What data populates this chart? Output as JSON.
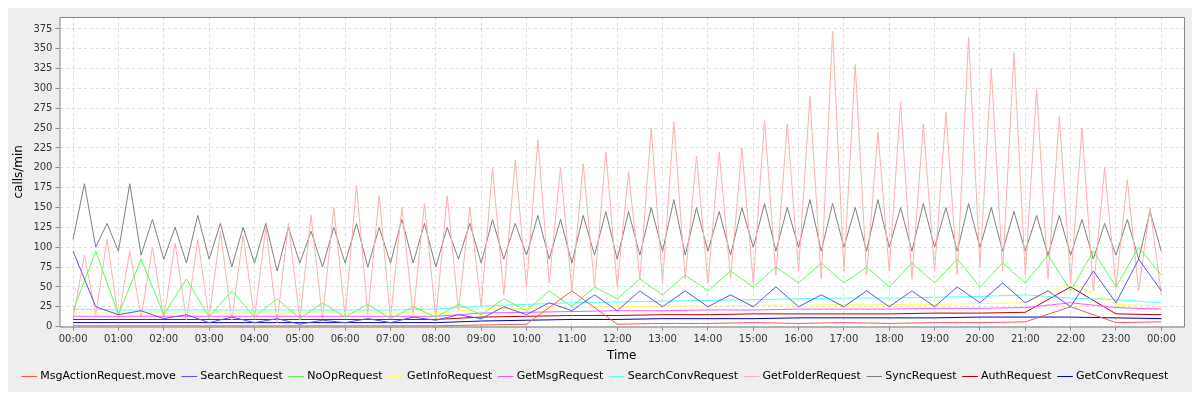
{
  "chart_data": {
    "type": "line",
    "xlabel": "Time",
    "ylabel": "calls/min",
    "xlim": [
      -0.3,
      24.5
    ],
    "ylim": [
      0,
      390
    ],
    "xticks": [
      {
        "value": 0,
        "label": "00:00"
      },
      {
        "value": 1,
        "label": "01:00"
      },
      {
        "value": 2,
        "label": "02:00"
      },
      {
        "value": 3,
        "label": "03:00"
      },
      {
        "value": 4,
        "label": "04:00"
      },
      {
        "value": 5,
        "label": "05:00"
      },
      {
        "value": 6,
        "label": "06:00"
      },
      {
        "value": 7,
        "label": "07:00"
      },
      {
        "value": 8,
        "label": "08:00"
      },
      {
        "value": 9,
        "label": "09:00"
      },
      {
        "value": 10,
        "label": "10:00"
      },
      {
        "value": 11,
        "label": "11:00"
      },
      {
        "value": 12,
        "label": "12:00"
      },
      {
        "value": 13,
        "label": "13:00"
      },
      {
        "value": 14,
        "label": "14:00"
      },
      {
        "value": 15,
        "label": "15:00"
      },
      {
        "value": 16,
        "label": "16:00"
      },
      {
        "value": 17,
        "label": "17:00"
      },
      {
        "value": 18,
        "label": "18:00"
      },
      {
        "value": 19,
        "label": "19:00"
      },
      {
        "value": 20,
        "label": "20:00"
      },
      {
        "value": 21,
        "label": "21:00"
      },
      {
        "value": 22,
        "label": "22:00"
      },
      {
        "value": 23,
        "label": "23:00"
      },
      {
        "value": 24,
        "label": "00:00"
      }
    ],
    "yticks": [
      0,
      25,
      50,
      75,
      100,
      125,
      150,
      175,
      200,
      225,
      250,
      275,
      300,
      325,
      350,
      375
    ],
    "grid": true,
    "legend": "bottom",
    "marker": "none",
    "line_style": "solid",
    "series": [
      {
        "name": "MsgActionRequest.move",
        "color": "#ff5555",
        "x": [
          0,
          1,
          2,
          3,
          4,
          5,
          6,
          7,
          8,
          9,
          10,
          11,
          12,
          13,
          14,
          15,
          16,
          17,
          18,
          19,
          20,
          21,
          22,
          23,
          24
        ],
        "values": [
          1,
          1,
          1,
          1,
          1,
          1,
          1,
          1,
          1,
          2,
          3,
          45,
          3,
          4,
          4,
          5,
          4,
          5,
          4,
          5,
          5,
          6,
          25,
          5,
          6
        ]
      },
      {
        "name": "SearchRequest",
        "color": "#5555ff",
        "x": [
          0,
          0.5,
          1,
          1.5,
          2,
          2.5,
          3,
          3.5,
          4,
          4.5,
          5,
          5.5,
          6,
          6.5,
          7,
          7.5,
          8,
          8.5,
          9,
          9.5,
          10,
          10.5,
          11,
          11.5,
          12,
          12.5,
          13,
          13.5,
          14,
          14.5,
          15,
          15.5,
          16,
          16.5,
          17,
          17.5,
          18,
          18.5,
          19,
          19.5,
          20,
          20.5,
          21,
          21.5,
          22,
          22.5,
          23,
          23.5,
          24
        ],
        "values": [
          95,
          25,
          15,
          20,
          10,
          15,
          5,
          12,
          5,
          10,
          3,
          8,
          5,
          10,
          5,
          12,
          8,
          15,
          10,
          25,
          15,
          30,
          20,
          40,
          20,
          45,
          25,
          45,
          25,
          40,
          25,
          50,
          25,
          40,
          25,
          45,
          25,
          45,
          25,
          50,
          30,
          55,
          30,
          45,
          25,
          70,
          30,
          85,
          45
        ]
      },
      {
        "name": "NoOpRequest",
        "color": "#55ff55",
        "x": [
          0,
          0.5,
          1,
          1.5,
          2,
          2.5,
          3,
          3.5,
          4,
          4.5,
          5,
          5.5,
          6,
          6.5,
          7,
          7.5,
          8,
          8.5,
          9,
          9.5,
          10,
          10.5,
          11,
          11.5,
          12,
          12.5,
          13,
          13.5,
          14,
          14.5,
          15,
          15.5,
          16,
          16.5,
          17,
          17.5,
          18,
          18.5,
          19,
          19.5,
          20,
          20.5,
          21,
          21.5,
          22,
          22.5,
          23,
          23.5,
          24
        ],
        "values": [
          20,
          95,
          15,
          85,
          15,
          60,
          12,
          45,
          12,
          35,
          10,
          30,
          12,
          28,
          10,
          25,
          12,
          28,
          15,
          35,
          20,
          45,
          25,
          50,
          35,
          60,
          40,
          65,
          45,
          70,
          50,
          75,
          55,
          80,
          55,
          75,
          50,
          80,
          55,
          85,
          50,
          80,
          55,
          90,
          45,
          95,
          50,
          100,
          65
        ]
      },
      {
        "name": "GetInfoRequest",
        "color": "#ffff55",
        "x": [
          0,
          1,
          2,
          3,
          4,
          5,
          6,
          7,
          8,
          9,
          10,
          11,
          12,
          13,
          14,
          15,
          16,
          17,
          18,
          19,
          20,
          21,
          22,
          23,
          24
        ],
        "values": [
          17,
          17,
          17,
          17,
          17,
          17,
          17,
          17,
          17,
          22,
          23,
          24,
          25,
          26,
          26,
          27,
          27,
          28,
          28,
          28,
          29,
          30,
          55,
          28,
          26
        ]
      },
      {
        "name": "GetMsgRequest",
        "color": "#ff55ff",
        "x": [
          0,
          1,
          2,
          3,
          4,
          5,
          6,
          7,
          8,
          9,
          10,
          11,
          12,
          13,
          14,
          15,
          16,
          17,
          18,
          19,
          20,
          21,
          22,
          23,
          24
        ],
        "values": [
          13,
          13,
          13,
          13,
          13,
          13,
          13,
          13,
          13,
          17,
          18,
          19,
          20,
          20,
          21,
          21,
          22,
          22,
          22,
          23,
          23,
          24,
          30,
          24,
          22
        ]
      },
      {
        "name": "SearchConvRequest",
        "color": "#55ffff",
        "x": [
          0,
          1,
          2,
          3,
          4,
          5,
          6,
          7,
          8,
          9,
          10,
          11,
          12,
          13,
          14,
          15,
          16,
          17,
          18,
          19,
          20,
          21,
          22,
          23,
          24
        ],
        "values": [
          22,
          21,
          21,
          21,
          21,
          21,
          21,
          21,
          22,
          26,
          28,
          30,
          31,
          32,
          33,
          34,
          35,
          36,
          36,
          37,
          38,
          40,
          36,
          34,
          30
        ]
      },
      {
        "name": "GetFolderRequest",
        "color": "#ffafaf",
        "x": [
          0,
          0.25,
          0.5,
          0.75,
          1,
          1.25,
          1.5,
          1.75,
          2,
          2.25,
          2.5,
          2.75,
          3,
          3.25,
          3.5,
          3.75,
          4,
          4.25,
          4.5,
          4.75,
          5,
          5.25,
          5.5,
          5.75,
          6,
          6.25,
          6.5,
          6.75,
          7,
          7.25,
          7.5,
          7.75,
          8,
          8.25,
          8.5,
          8.75,
          9,
          9.25,
          9.5,
          9.75,
          10,
          10.25,
          10.5,
          10.75,
          11,
          11.25,
          11.5,
          11.75,
          12,
          12.25,
          12.5,
          12.75,
          13,
          13.25,
          13.5,
          13.75,
          14,
          14.25,
          14.5,
          14.75,
          15,
          15.25,
          15.5,
          15.75,
          16,
          16.25,
          16.5,
          16.75,
          17,
          17.25,
          17.5,
          17.75,
          18,
          18.25,
          18.5,
          18.75,
          19,
          19.25,
          19.5,
          19.75,
          20,
          20.25,
          20.5,
          20.75,
          21,
          21.25,
          21.5,
          21.75,
          22,
          22.25,
          22.5,
          22.75,
          23,
          23.25,
          23.5,
          23.75,
          24
        ],
        "values": [
          10,
          90,
          15,
          110,
          10,
          95,
          12,
          100,
          10,
          105,
          8,
          110,
          10,
          120,
          8,
          115,
          10,
          125,
          5,
          130,
          8,
          140,
          10,
          150,
          12,
          178,
          15,
          165,
          10,
          150,
          15,
          155,
          10,
          165,
          20,
          150,
          25,
          200,
          40,
          210,
          50,
          235,
          55,
          200,
          45,
          205,
          50,
          220,
          50,
          195,
          60,
          250,
          55,
          258,
          60,
          215,
          55,
          220,
          60,
          225,
          55,
          260,
          65,
          255,
          70,
          290,
          60,
          372,
          70,
          330,
          65,
          245,
          70,
          283,
          60,
          255,
          70,
          270,
          65,
          365,
          75,
          325,
          70,
          345,
          65,
          300,
          60,
          265,
          55,
          250,
          45,
          200,
          50,
          185,
          45,
          150,
          40
        ]
      },
      {
        "name": "SyncRequest",
        "color": "#808080",
        "x": [
          0,
          0.25,
          0.5,
          0.75,
          1,
          1.25,
          1.5,
          1.75,
          2,
          2.25,
          2.5,
          2.75,
          3,
          3.25,
          3.5,
          3.75,
          4,
          4.25,
          4.5,
          4.75,
          5,
          5.25,
          5.5,
          5.75,
          6,
          6.25,
          6.5,
          6.75,
          7,
          7.25,
          7.5,
          7.75,
          8,
          8.25,
          8.5,
          8.75,
          9,
          9.25,
          9.5,
          9.75,
          10,
          10.25,
          10.5,
          10.75,
          11,
          11.25,
          11.5,
          11.75,
          12,
          12.25,
          12.5,
          12.75,
          13,
          13.25,
          13.5,
          13.75,
          14,
          14.25,
          14.5,
          14.75,
          15,
          15.25,
          15.5,
          15.75,
          16,
          16.25,
          16.5,
          16.75,
          17,
          17.25,
          17.5,
          17.75,
          18,
          18.25,
          18.5,
          18.75,
          19,
          19.25,
          19.5,
          19.75,
          20,
          20.25,
          20.5,
          20.75,
          21,
          21.25,
          21.5,
          21.75,
          22,
          22.25,
          22.5,
          22.75,
          23,
          23.25,
          23.5,
          23.75,
          24
        ],
        "values": [
          110,
          180,
          100,
          130,
          95,
          180,
          90,
          135,
          85,
          125,
          80,
          140,
          85,
          130,
          75,
          125,
          80,
          130,
          70,
          125,
          80,
          120,
          75,
          125,
          80,
          130,
          75,
          125,
          80,
          135,
          80,
          130,
          75,
          125,
          85,
          130,
          80,
          135,
          85,
          130,
          90,
          140,
          85,
          135,
          80,
          140,
          90,
          145,
          85,
          145,
          90,
          150,
          95,
          160,
          90,
          150,
          95,
          145,
          90,
          150,
          100,
          155,
          95,
          150,
          100,
          160,
          95,
          155,
          100,
          150,
          95,
          160,
          100,
          150,
          95,
          155,
          100,
          150,
          95,
          155,
          100,
          150,
          95,
          145,
          95,
          140,
          90,
          140,
          90,
          135,
          85,
          130,
          90,
          135,
          85,
          145,
          95
        ]
      },
      {
        "name": "AuthRequest",
        "color": "#c00000",
        "x": [
          0,
          1,
          2,
          3,
          4,
          5,
          6,
          7,
          8,
          9,
          10,
          11,
          12,
          13,
          14,
          15,
          16,
          17,
          18,
          19,
          20,
          21,
          22,
          23,
          24
        ],
        "values": [
          9,
          9,
          9,
          9,
          9,
          9,
          9,
          9,
          9,
          12,
          13,
          14,
          14,
          15,
          15,
          16,
          16,
          16,
          16,
          17,
          17,
          18,
          50,
          16,
          15
        ]
      },
      {
        "name": "GetConvRequest",
        "color": "#0000c0",
        "x": [
          0,
          1,
          2,
          3,
          4,
          5,
          6,
          7,
          8,
          9,
          10,
          11,
          12,
          13,
          14,
          15,
          16,
          17,
          18,
          19,
          20,
          21,
          22,
          23,
          24
        ],
        "values": [
          5,
          5,
          5,
          5,
          5,
          5,
          5,
          5,
          5,
          7,
          8,
          9,
          9,
          10,
          10,
          10,
          11,
          11,
          11,
          11,
          12,
          12,
          12,
          11,
          10
        ]
      }
    ]
  }
}
